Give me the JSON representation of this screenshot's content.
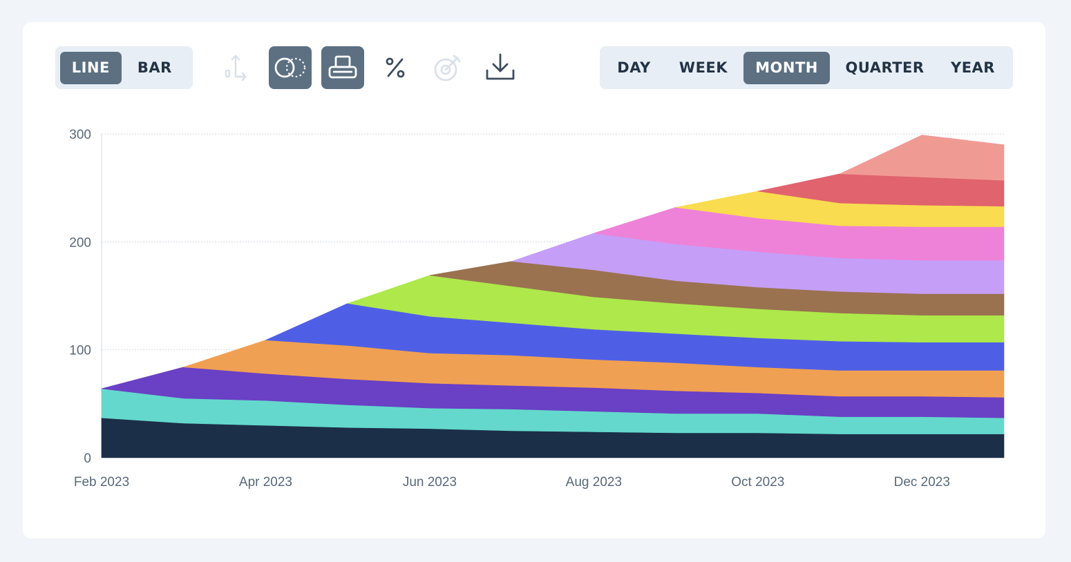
{
  "chart_type_toggle": {
    "options": [
      {
        "label": "LINE",
        "active": true
      },
      {
        "label": "BAR",
        "active": false
      }
    ]
  },
  "toolbar_icons": [
    {
      "icon": "axis-scatter-icon",
      "state": "disabled"
    },
    {
      "icon": "overlap-circles-icon",
      "state": "active"
    },
    {
      "icon": "stack-tray-icon",
      "state": "active"
    },
    {
      "icon": "percent-icon",
      "state": "enabled"
    },
    {
      "icon": "target-dart-icon",
      "state": "disabled"
    },
    {
      "icon": "download-icon",
      "state": "enabled"
    }
  ],
  "period_toggle": {
    "options": [
      {
        "label": "DAY",
        "active": false
      },
      {
        "label": "WEEK",
        "active": false
      },
      {
        "label": "MONTH",
        "active": true
      },
      {
        "label": "QUARTER",
        "active": false
      },
      {
        "label": "YEAR",
        "active": false
      }
    ]
  },
  "colors": {
    "active_bg": "#5c7082",
    "toggle_bg": "#e7eef5",
    "text": "#233346",
    "icon_disabled": "#d9e1e9"
  },
  "chart_data": {
    "type": "area",
    "stacked": true,
    "x": [
      "2023-02",
      "2023-03",
      "2023-04",
      "2023-05",
      "2023-06",
      "2023-07",
      "2023-08",
      "2023-09",
      "2023-10",
      "2023-11",
      "2023-12",
      "2024-01"
    ],
    "x_ticks": [
      "Feb 2023",
      "Apr 2023",
      "Jun 2023",
      "Aug 2023",
      "Oct 2023",
      "Dec 2023"
    ],
    "y_ticks": [
      0,
      100,
      200,
      300
    ],
    "ylim": [
      0,
      300
    ],
    "grid": true,
    "legend": "none",
    "series": [
      {
        "color": "#1c2f48",
        "values": [
          37,
          32,
          30,
          28,
          27,
          25,
          24,
          23,
          23,
          22,
          22,
          22
        ]
      },
      {
        "color": "#64d8cc",
        "values": [
          27,
          23,
          23,
          21,
          19,
          20,
          19,
          18,
          18,
          16,
          16,
          15
        ]
      },
      {
        "color": "#6a40c4",
        "values": [
          null,
          29,
          25,
          24,
          23,
          22,
          22,
          21,
          19,
          19,
          19,
          19
        ]
      },
      {
        "color": "#f0a052",
        "values": [
          null,
          null,
          31,
          31,
          28,
          28,
          26,
          26,
          24,
          24,
          24,
          25
        ]
      },
      {
        "color": "#4f5fe5",
        "values": [
          null,
          null,
          null,
          39,
          34,
          30,
          28,
          27,
          27,
          27,
          26,
          26
        ]
      },
      {
        "color": "#aee84b",
        "values": [
          null,
          null,
          null,
          null,
          38,
          34,
          30,
          28,
          27,
          26,
          25,
          25
        ]
      },
      {
        "color": "#9a7250",
        "values": [
          null,
          null,
          null,
          null,
          null,
          23,
          25,
          21,
          20,
          20,
          20,
          20
        ]
      },
      {
        "color": "#c59ef8",
        "values": [
          null,
          null,
          null,
          null,
          null,
          null,
          34,
          34,
          33,
          31,
          31,
          31
        ]
      },
      {
        "color": "#ee82d8",
        "values": [
          null,
          null,
          null,
          null,
          null,
          null,
          null,
          34,
          31,
          30,
          31,
          31
        ]
      },
      {
        "color": "#f9dc4f",
        "values": [
          null,
          null,
          null,
          null,
          null,
          null,
          null,
          null,
          25,
          21,
          20,
          19
        ]
      },
      {
        "color": "#e0636d",
        "values": [
          null,
          null,
          null,
          null,
          null,
          null,
          null,
          null,
          null,
          27,
          26,
          24
        ]
      },
      {
        "color": "#f09a94",
        "values": [
          null,
          null,
          null,
          null,
          null,
          null,
          null,
          null,
          null,
          null,
          39,
          33
        ]
      }
    ]
  }
}
